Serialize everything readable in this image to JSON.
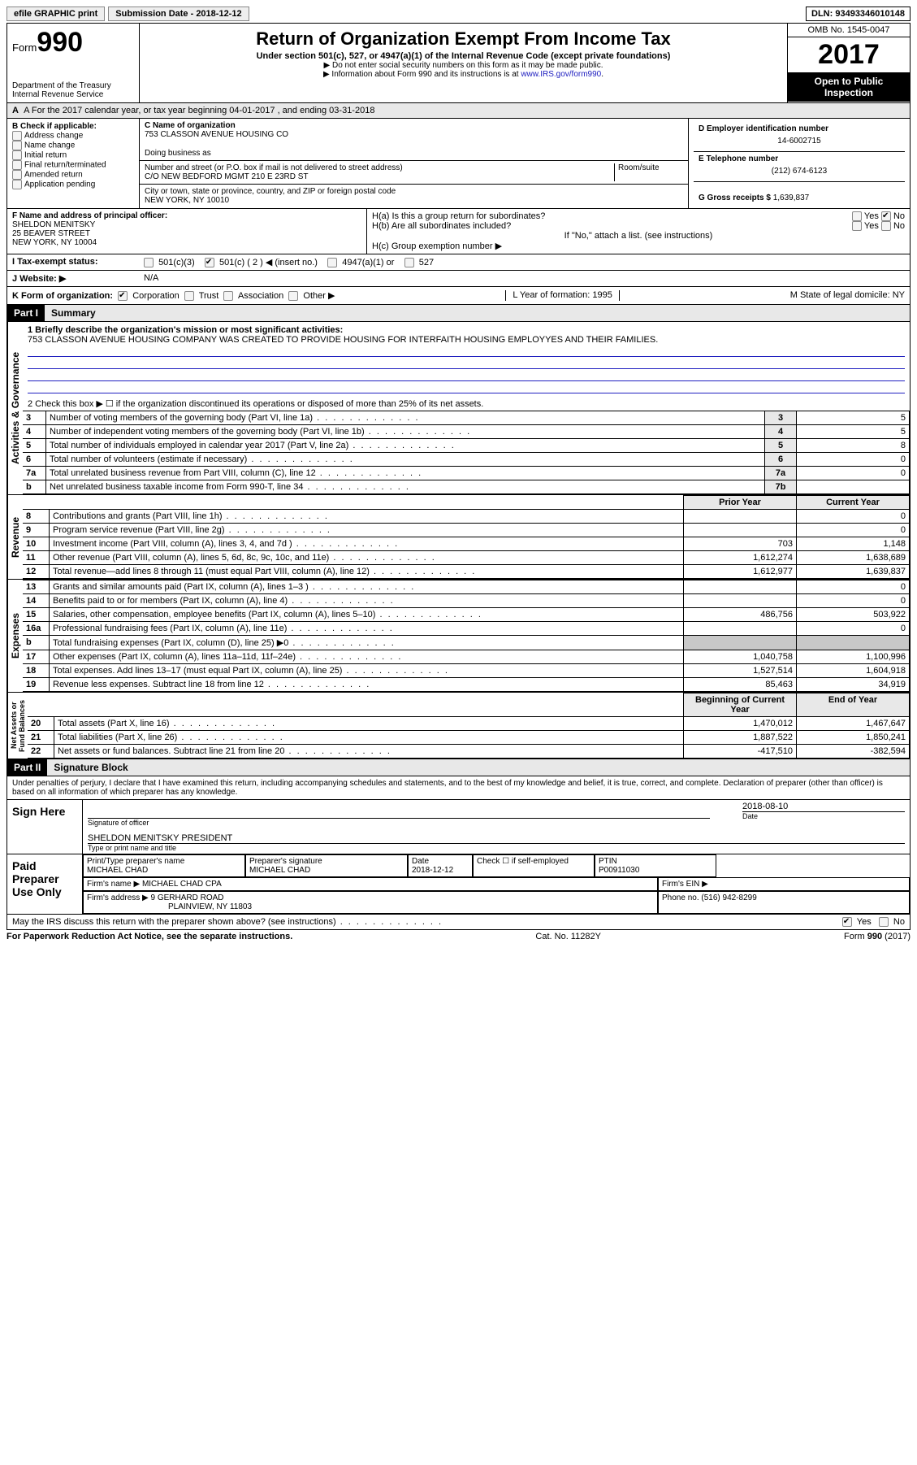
{
  "topbar": {
    "efile": "efile GRAPHIC print",
    "submission": "Submission Date - 2018-12-12",
    "dln": "DLN: 93493346010148"
  },
  "header": {
    "form": "Form",
    "form_num": "990",
    "dept1": "Department of the Treasury",
    "dept2": "Internal Revenue Service",
    "title": "Return of Organization Exempt From Income Tax",
    "subtitle": "Under section 501(c), 527, or 4947(a)(1) of the Internal Revenue Code (except private foundations)",
    "bullet1": "▶ Do not enter social security numbers on this form as it may be made public.",
    "bullet2": "▶ Information about Form 990 and its instructions is at ",
    "link": "www.IRS.gov/form990",
    "omb": "OMB No. 1545-0047",
    "year": "2017",
    "open": "Open to Public Inspection"
  },
  "A": {
    "text": "A  For the 2017 calendar year, or tax year beginning 04-01-2017   , and ending 03-31-2018"
  },
  "B": {
    "label": "B Check if applicable:",
    "items": [
      "Address change",
      "Name change",
      "Initial return",
      "Final return/terminated",
      "Amended return",
      "Application pending"
    ]
  },
  "C": {
    "name_label": "C Name of organization",
    "name": "753 CLASSON AVENUE HOUSING CO",
    "dba_label": "Doing business as",
    "addr_label": "Number and street (or P.O. box if mail is not delivered to street address)",
    "room_label": "Room/suite",
    "addr": "C/O NEW BEDFORD MGMT 210 E 23RD ST",
    "city_label": "City or town, state or province, country, and ZIP or foreign postal code",
    "city": "NEW YORK, NY  10010"
  },
  "D": {
    "label": "D Employer identification number",
    "val": "14-6002715"
  },
  "E": {
    "label": "E Telephone number",
    "val": "(212) 674-6123"
  },
  "G": {
    "label": "G Gross receipts $",
    "val": "1,639,837"
  },
  "F": {
    "label": "F  Name and address of principal officer:",
    "name": "SHELDON MENITSKY",
    "addr": "25 BEAVER STREET",
    "city": "NEW YORK, NY  10004"
  },
  "H": {
    "a": "H(a)  Is this a group return for subordinates?",
    "b": "H(b)  Are all subordinates included?",
    "bnote": "If \"No,\" attach a list. (see instructions)",
    "c": "H(c)  Group exemption number ▶"
  },
  "I": {
    "label": "I  Tax-exempt status:",
    "opts": [
      "501(c)(3)",
      "501(c) ( 2 ) ◀ (insert no.)",
      "4947(a)(1) or",
      "527"
    ]
  },
  "J": {
    "label": "J  Website: ▶",
    "val": "N/A"
  },
  "K": {
    "label": "K Form of organization:",
    "opts": [
      "Corporation",
      "Trust",
      "Association",
      "Other ▶"
    ]
  },
  "L": "L Year of formation: 1995",
  "M": "M State of legal domicile: NY",
  "part1": {
    "num": "Part I",
    "title": "Summary"
  },
  "mission_label": "1  Briefly describe the organization's mission or most significant activities:",
  "mission": "753 CLASSON AVENUE HOUSING COMPANY WAS CREATED TO PROVIDE HOUSING FOR INTERFAITH HOUSING EMPLOYYES AND THEIR FAMILIES.",
  "line2": "2  Check this box ▶ ☐  if the organization discontinued its operations or disposed of more than 25% of its net assets.",
  "gov_rows": [
    {
      "n": "3",
      "d": "Number of voting members of the governing body (Part VI, line 1a)",
      "box": "3",
      "v": "5"
    },
    {
      "n": "4",
      "d": "Number of independent voting members of the governing body (Part VI, line 1b)",
      "box": "4",
      "v": "5"
    },
    {
      "n": "5",
      "d": "Total number of individuals employed in calendar year 2017 (Part V, line 2a)",
      "box": "5",
      "v": "8"
    },
    {
      "n": "6",
      "d": "Total number of volunteers (estimate if necessary)",
      "box": "6",
      "v": "0"
    },
    {
      "n": "7a",
      "d": "Total unrelated business revenue from Part VIII, column (C), line 12",
      "box": "7a",
      "v": "0"
    },
    {
      "n": "b",
      "d": "Net unrelated business taxable income from Form 990-T, line 34",
      "box": "7b",
      "v": ""
    }
  ],
  "col_prior": "Prior Year",
  "col_current": "Current Year",
  "rev_rows": [
    {
      "n": "8",
      "d": "Contributions and grants (Part VIII, line 1h)",
      "p": "",
      "c": "0"
    },
    {
      "n": "9",
      "d": "Program service revenue (Part VIII, line 2g)",
      "p": "",
      "c": "0"
    },
    {
      "n": "10",
      "d": "Investment income (Part VIII, column (A), lines 3, 4, and 7d )",
      "p": "703",
      "c": "1,148"
    },
    {
      "n": "11",
      "d": "Other revenue (Part VIII, column (A), lines 5, 6d, 8c, 9c, 10c, and 11e)",
      "p": "1,612,274",
      "c": "1,638,689"
    },
    {
      "n": "12",
      "d": "Total revenue—add lines 8 through 11 (must equal Part VIII, column (A), line 12)",
      "p": "1,612,977",
      "c": "1,639,837"
    }
  ],
  "exp_rows": [
    {
      "n": "13",
      "d": "Grants and similar amounts paid (Part IX, column (A), lines 1–3 )",
      "p": "",
      "c": "0"
    },
    {
      "n": "14",
      "d": "Benefits paid to or for members (Part IX, column (A), line 4)",
      "p": "",
      "c": "0"
    },
    {
      "n": "15",
      "d": "Salaries, other compensation, employee benefits (Part IX, column (A), lines 5–10)",
      "p": "486,756",
      "c": "503,922"
    },
    {
      "n": "16a",
      "d": "Professional fundraising fees (Part IX, column (A), line 11e)",
      "p": "",
      "c": "0"
    },
    {
      "n": "b",
      "d": "Total fundraising expenses (Part IX, column (D), line 25) ▶0",
      "p": "SHADE",
      "c": "SHADE"
    },
    {
      "n": "17",
      "d": "Other expenses (Part IX, column (A), lines 11a–11d, 11f–24e)",
      "p": "1,040,758",
      "c": "1,100,996"
    },
    {
      "n": "18",
      "d": "Total expenses. Add lines 13–17 (must equal Part IX, column (A), line 25)",
      "p": "1,527,514",
      "c": "1,604,918"
    },
    {
      "n": "19",
      "d": "Revenue less expenses. Subtract line 18 from line 12",
      "p": "85,463",
      "c": "34,919"
    }
  ],
  "col_begin": "Beginning of Current Year",
  "col_end": "End of Year",
  "net_rows": [
    {
      "n": "20",
      "d": "Total assets (Part X, line 16)",
      "p": "1,470,012",
      "c": "1,467,647"
    },
    {
      "n": "21",
      "d": "Total liabilities (Part X, line 26)",
      "p": "1,887,522",
      "c": "1,850,241"
    },
    {
      "n": "22",
      "d": "Net assets or fund balances. Subtract line 21 from line 20",
      "p": "-417,510",
      "c": "-382,594"
    }
  ],
  "part2": {
    "num": "Part II",
    "title": "Signature Block"
  },
  "penalty": "Under penalties of perjury, I declare that I have examined this return, including accompanying schedules and statements, and to the best of my knowledge and belief, it is true, correct, and complete. Declaration of preparer (other than officer) is based on all information of which preparer has any knowledge.",
  "sign": {
    "here": "Sign Here",
    "date": "2018-08-10",
    "sig_officer": "Signature of officer",
    "date_lbl": "Date",
    "name": "SHELDON MENITSKY PRESIDENT",
    "name_lbl": "Type or print name and title"
  },
  "paid": {
    "label": "Paid Preparer Use Only",
    "h1": "Print/Type preparer's name",
    "v1": "MICHAEL CHAD",
    "h2": "Preparer's signature",
    "v2": "MICHAEL CHAD",
    "h3": "Date",
    "v3": "2018-12-12",
    "h4": "Check ☐ if self-employed",
    "h5": "PTIN",
    "v5": "P00911030",
    "firm_name_l": "Firm's name    ▶",
    "firm_name": "MICHAEL CHAD CPA",
    "firm_ein_l": "Firm's EIN ▶",
    "firm_addr_l": "Firm's address ▶",
    "firm_addr": "9 GERHARD ROAD",
    "firm_city": "PLAINVIEW, NY  11803",
    "phone_l": "Phone no.",
    "phone": "(516) 942-8299"
  },
  "discuss": "May the IRS discuss this return with the preparer shown above? (see instructions)",
  "footer": {
    "left": "For Paperwork Reduction Act Notice, see the separate instructions.",
    "mid": "Cat. No. 11282Y",
    "right": "Form 990 (2017)"
  }
}
